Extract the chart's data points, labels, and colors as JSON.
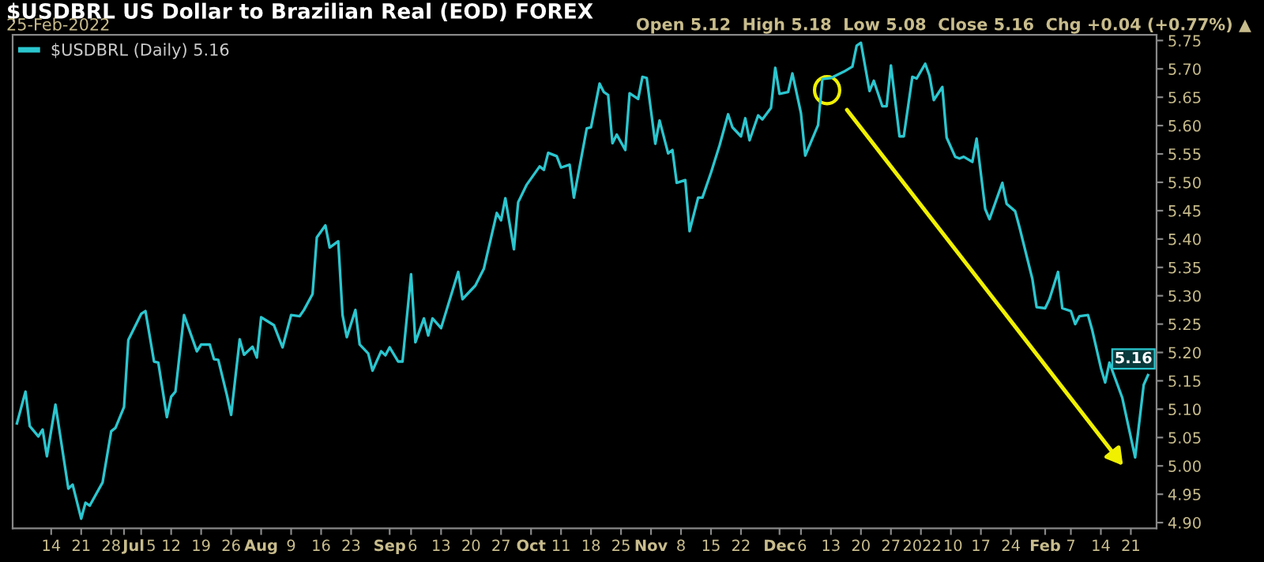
{
  "chart_data": {
    "type": "line",
    "title": "$USDBRL US Dollar to Brazilian Real (EOD) FOREX",
    "subtitle": "25-Feb-2022",
    "annotations": [
      "Open 5.12  High 5.18  Low 5.08  Close 5.16  Chg +0.04 (+0.77%) ▲",
      {
        "text": "5.16",
        "x": "2022-02-25",
        "y": 5.16
      }
    ],
    "x": [
      "2021-06-06",
      "2021-06-08",
      "2021-06-09",
      "2021-06-11",
      "2021-06-12",
      "2021-06-13",
      "2021-06-15",
      "2021-06-18",
      "2021-06-19",
      "2021-06-21",
      "2021-06-22",
      "2021-06-23",
      "2021-06-26",
      "2021-06-28",
      "2021-06-29",
      "2021-07-01",
      "2021-07-02",
      "2021-07-05",
      "2021-07-06",
      "2021-07-08",
      "2021-07-09",
      "2021-07-11",
      "2021-07-12",
      "2021-07-13",
      "2021-07-15",
      "2021-07-18",
      "2021-07-19",
      "2021-07-21",
      "2021-07-22",
      "2021-07-23",
      "2021-07-25",
      "2021-07-26",
      "2021-07-28",
      "2021-07-29",
      "2021-07-31",
      "2021-08-01",
      "2021-08-02",
      "2021-08-05",
      "2021-08-07",
      "2021-08-09",
      "2021-08-11",
      "2021-08-12",
      "2021-08-14",
      "2021-08-15",
      "2021-08-17",
      "2021-08-18",
      "2021-08-20",
      "2021-08-21",
      "2021-08-22",
      "2021-08-24",
      "2021-08-25",
      "2021-08-27",
      "2021-08-28",
      "2021-08-30",
      "2021-08-31",
      "2021-09-01",
      "2021-09-03",
      "2021-09-04",
      "2021-09-06",
      "2021-09-07",
      "2021-09-09",
      "2021-09-10",
      "2021-09-11",
      "2021-09-13",
      "2021-09-17",
      "2021-09-18",
      "2021-09-21",
      "2021-09-23",
      "2021-09-26",
      "2021-09-27",
      "2021-09-28",
      "2021-09-30",
      "2021-10-01",
      "2021-10-03",
      "2021-10-06",
      "2021-10-07",
      "2021-10-08",
      "2021-10-10",
      "2021-10-11",
      "2021-10-13",
      "2021-10-14",
      "2021-10-17",
      "2021-10-18",
      "2021-10-20",
      "2021-10-21",
      "2021-10-22",
      "2021-10-23",
      "2021-10-24",
      "2021-10-26",
      "2021-10-27",
      "2021-10-29",
      "2021-10-30",
      "2021-10-31",
      "2021-11-02",
      "2021-11-03",
      "2021-11-05",
      "2021-11-06",
      "2021-11-07",
      "2021-11-09",
      "2021-11-10",
      "2021-11-12",
      "2021-11-13",
      "2021-11-15",
      "2021-11-17",
      "2021-11-19",
      "2021-11-20",
      "2021-11-22",
      "2021-11-23",
      "2021-11-24",
      "2021-11-26",
      "2021-11-27",
      "2021-11-29",
      "2021-11-30",
      "2021-12-01",
      "2021-12-03",
      "2021-12-04",
      "2021-12-06",
      "2021-12-07",
      "2021-12-10",
      "2021-12-11",
      "2021-12-13",
      "2021-12-16",
      "2021-12-18",
      "2021-12-19",
      "2021-12-20",
      "2021-12-22",
      "2021-12-23",
      "2021-12-25",
      "2021-12-26",
      "2021-12-27",
      "2021-12-29",
      "2021-12-30",
      "2022-01-01",
      "2022-01-02",
      "2022-01-04",
      "2022-01-05",
      "2022-01-06",
      "2022-01-08",
      "2022-01-09",
      "2022-01-11",
      "2022-01-12",
      "2022-01-13",
      "2022-01-15",
      "2022-01-16",
      "2022-01-18",
      "2022-01-19",
      "2022-01-22",
      "2022-01-23",
      "2022-01-25",
      "2022-01-26",
      "2022-01-29",
      "2022-01-30",
      "2022-02-01",
      "2022-02-02",
      "2022-02-04",
      "2022-02-05",
      "2022-02-07",
      "2022-02-08",
      "2022-02-09",
      "2022-02-11",
      "2022-02-12",
      "2022-02-14",
      "2022-02-15",
      "2022-02-16",
      "2022-02-19",
      "2022-02-22",
      "2022-02-24",
      "2022-02-25"
    ],
    "series": [
      {
        "name": "$USDBRL (Daily) 5.16",
        "color": "#2bc6cf",
        "values": [
          5.075,
          5.131,
          5.07,
          5.052,
          5.064,
          5.017,
          5.108,
          4.96,
          4.967,
          4.907,
          4.935,
          4.93,
          4.971,
          5.061,
          5.067,
          5.104,
          5.222,
          5.268,
          5.273,
          5.184,
          5.182,
          5.086,
          5.122,
          5.131,
          5.266,
          5.202,
          5.214,
          5.214,
          5.188,
          5.187,
          5.125,
          5.09,
          5.223,
          5.196,
          5.21,
          5.191,
          5.262,
          5.248,
          5.209,
          5.266,
          5.264,
          5.275,
          5.303,
          5.403,
          5.424,
          5.385,
          5.396,
          5.266,
          5.227,
          5.275,
          5.214,
          5.198,
          5.168,
          5.202,
          5.195,
          5.209,
          5.184,
          5.184,
          5.338,
          5.218,
          5.26,
          5.23,
          5.26,
          5.243,
          5.342,
          5.294,
          5.318,
          5.348,
          5.446,
          5.433,
          5.472,
          5.382,
          5.465,
          5.496,
          5.528,
          5.522,
          5.552,
          5.546,
          5.526,
          5.531,
          5.473,
          5.595,
          5.597,
          5.674,
          5.659,
          5.654,
          5.569,
          5.584,
          5.557,
          5.657,
          5.647,
          5.686,
          5.684,
          5.568,
          5.609,
          5.551,
          5.557,
          5.499,
          5.504,
          5.414,
          5.473,
          5.473,
          5.517,
          5.565,
          5.62,
          5.597,
          5.581,
          5.613,
          5.574,
          5.618,
          5.611,
          5.631,
          5.702,
          5.656,
          5.659,
          5.692,
          5.622,
          5.547,
          5.601,
          5.682,
          5.684,
          5.695,
          5.704,
          5.741,
          5.746,
          5.661,
          5.679,
          5.634,
          5.634,
          5.706,
          5.581,
          5.581,
          5.686,
          5.683,
          5.709,
          5.688,
          5.645,
          5.668,
          5.579,
          5.545,
          5.542,
          5.545,
          5.536,
          5.577,
          5.453,
          5.435,
          5.499,
          5.462,
          5.449,
          5.421,
          5.33,
          5.28,
          5.278,
          5.294,
          5.342,
          5.278,
          5.273,
          5.25,
          5.264,
          5.266,
          5.239,
          5.173,
          5.147,
          5.182,
          5.12,
          5.015,
          5.143,
          5.16
        ]
      }
    ],
    "xlim": [
      "2021-06-05",
      "2022-02-27"
    ],
    "xticks": [
      {
        "value": "2021-06-14",
        "label": "14"
      },
      {
        "value": "2021-06-21",
        "label": "21"
      },
      {
        "value": "2021-06-28",
        "label": "28"
      },
      {
        "value": "2021-07-01",
        "label": "Jul"
      },
      {
        "value": "2021-07-05",
        "label": "5"
      },
      {
        "value": "2021-07-12",
        "label": "12"
      },
      {
        "value": "2021-07-19",
        "label": "19"
      },
      {
        "value": "2021-07-26",
        "label": "26"
      },
      {
        "value": "2021-08-02",
        "label": "Aug"
      },
      {
        "value": "2021-08-09",
        "label": "9"
      },
      {
        "value": "2021-08-16",
        "label": "16"
      },
      {
        "value": "2021-08-23",
        "label": "23"
      },
      {
        "value": "2021-09-01",
        "label": "Sep"
      },
      {
        "value": "2021-09-06",
        "label": "6"
      },
      {
        "value": "2021-09-13",
        "label": "13"
      },
      {
        "value": "2021-09-20",
        "label": "20"
      },
      {
        "value": "2021-09-27",
        "label": "27"
      },
      {
        "value": "2021-10-04",
        "label": "Oct"
      },
      {
        "value": "2021-10-11",
        "label": "11"
      },
      {
        "value": "2021-10-18",
        "label": "18"
      },
      {
        "value": "2021-10-25",
        "label": "25"
      },
      {
        "value": "2021-11-01",
        "label": "Nov"
      },
      {
        "value": "2021-11-08",
        "label": "8"
      },
      {
        "value": "2021-11-15",
        "label": "15"
      },
      {
        "value": "2021-11-22",
        "label": "22"
      },
      {
        "value": "2021-12-01",
        "label": "Dec"
      },
      {
        "value": "2021-12-06",
        "label": "6"
      },
      {
        "value": "2021-12-13",
        "label": "13"
      },
      {
        "value": "2021-12-20",
        "label": "20"
      },
      {
        "value": "2021-12-27",
        "label": "27"
      },
      {
        "value": "2022-01-03",
        "label": "2022"
      },
      {
        "value": "2022-01-10",
        "label": "10"
      },
      {
        "value": "2022-01-17",
        "label": "17"
      },
      {
        "value": "2022-01-24",
        "label": "24"
      },
      {
        "value": "2022-02-01",
        "label": "Feb"
      },
      {
        "value": "2022-02-07",
        "label": "7"
      },
      {
        "value": "2022-02-14",
        "label": "14"
      },
      {
        "value": "2022-02-21",
        "label": "21"
      }
    ],
    "ylim": [
      4.89,
      5.76
    ],
    "yticks": [
      {
        "value": 4.9,
        "label": "4.90"
      },
      {
        "value": 4.95,
        "label": "4.95"
      },
      {
        "value": 5.0,
        "label": "5.00"
      },
      {
        "value": 5.05,
        "label": "5.05"
      },
      {
        "value": 5.1,
        "label": "5.10"
      },
      {
        "value": 5.15,
        "label": "5.15"
      },
      {
        "value": 5.2,
        "label": "5.20"
      },
      {
        "value": 5.25,
        "label": "5.25"
      },
      {
        "value": 5.3,
        "label": "5.30"
      },
      {
        "value": 5.35,
        "label": "5.35"
      },
      {
        "value": 5.4,
        "label": "5.40"
      },
      {
        "value": 5.45,
        "label": "5.45"
      },
      {
        "value": 5.5,
        "label": "5.50"
      },
      {
        "value": 5.55,
        "label": "5.55"
      },
      {
        "value": 5.6,
        "label": "5.60"
      },
      {
        "value": 5.65,
        "label": "5.65"
      },
      {
        "value": 5.7,
        "label": "5.70"
      },
      {
        "value": 5.75,
        "label": "5.75"
      }
    ],
    "grid": false,
    "legend": "top left",
    "line_style": "solid",
    "marker": "none"
  }
}
